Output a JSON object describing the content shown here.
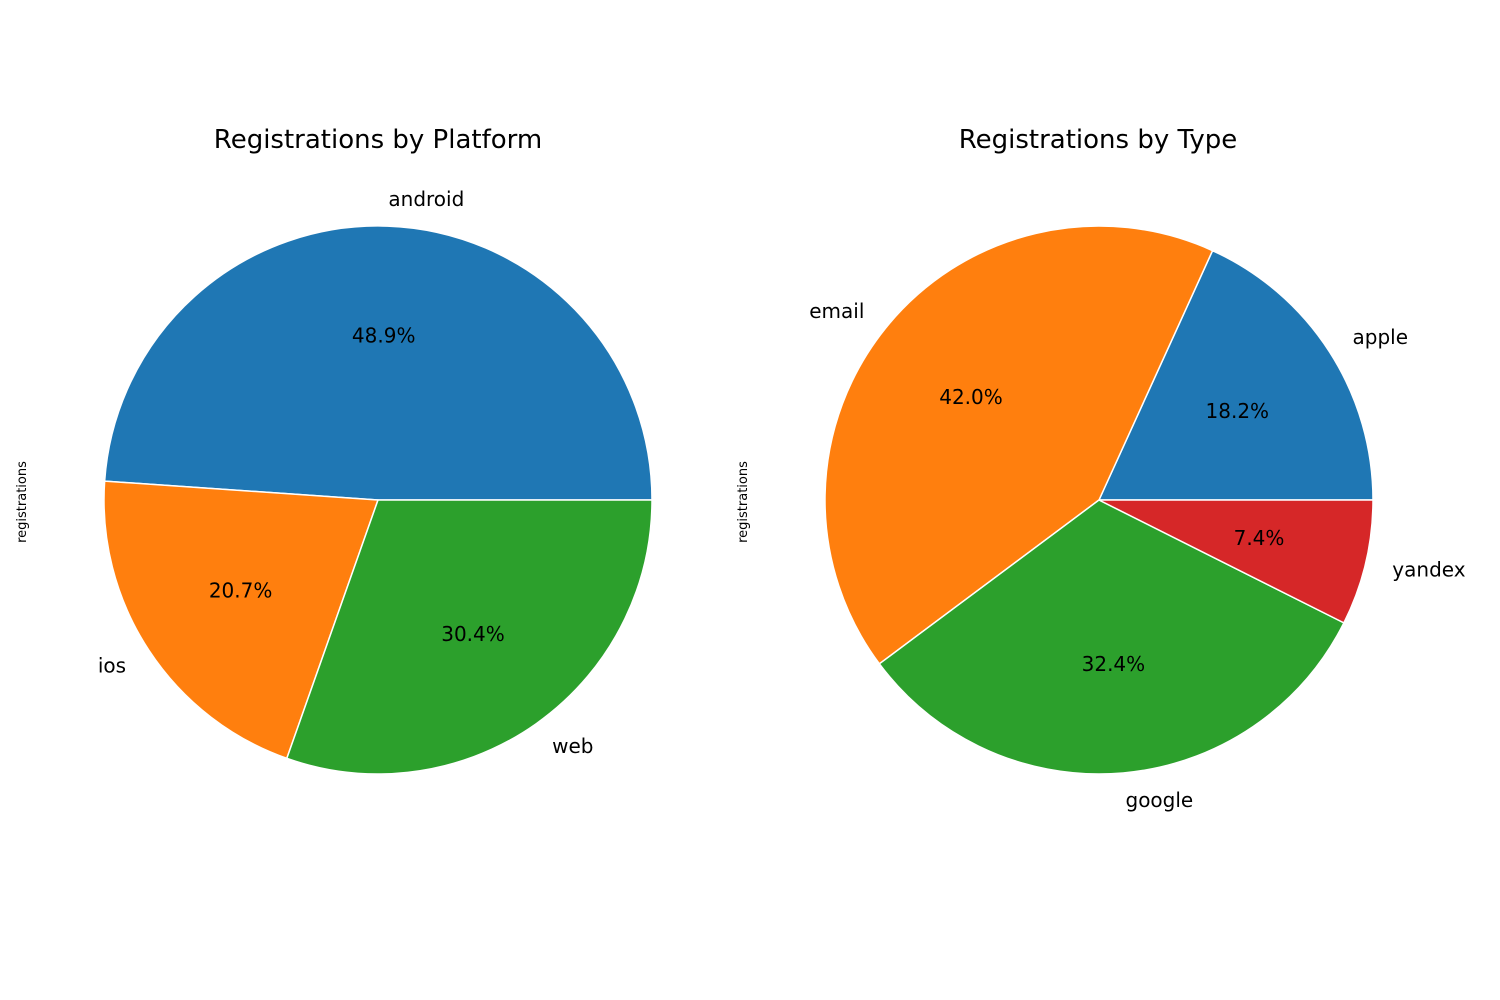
{
  "chart_data": [
    {
      "type": "pie",
      "title": "Registrations by Platform",
      "ylabel": "registrations",
      "categories": [
        "android",
        "ios",
        "web"
      ],
      "values": [
        48.9,
        20.7,
        30.4
      ],
      "value_labels": [
        "48.9%",
        "20.7%",
        "30.4%"
      ],
      "colors": [
        "#1f77b4",
        "#ff7f0e",
        "#2ca02c"
      ],
      "start_angle_deg": 0,
      "direction": "counterclockwise"
    },
    {
      "type": "pie",
      "title": "Registrations by Type",
      "ylabel": "registrations",
      "categories": [
        "apple",
        "email",
        "google",
        "yandex"
      ],
      "values": [
        18.2,
        42.0,
        32.4,
        7.4
      ],
      "value_labels": [
        "18.2%",
        "42.0%",
        "32.4%",
        "7.4%"
      ],
      "colors": [
        "#1f77b4",
        "#ff7f0e",
        "#2ca02c",
        "#d62728"
      ],
      "start_angle_deg": 0,
      "direction": "counterclockwise"
    }
  ]
}
